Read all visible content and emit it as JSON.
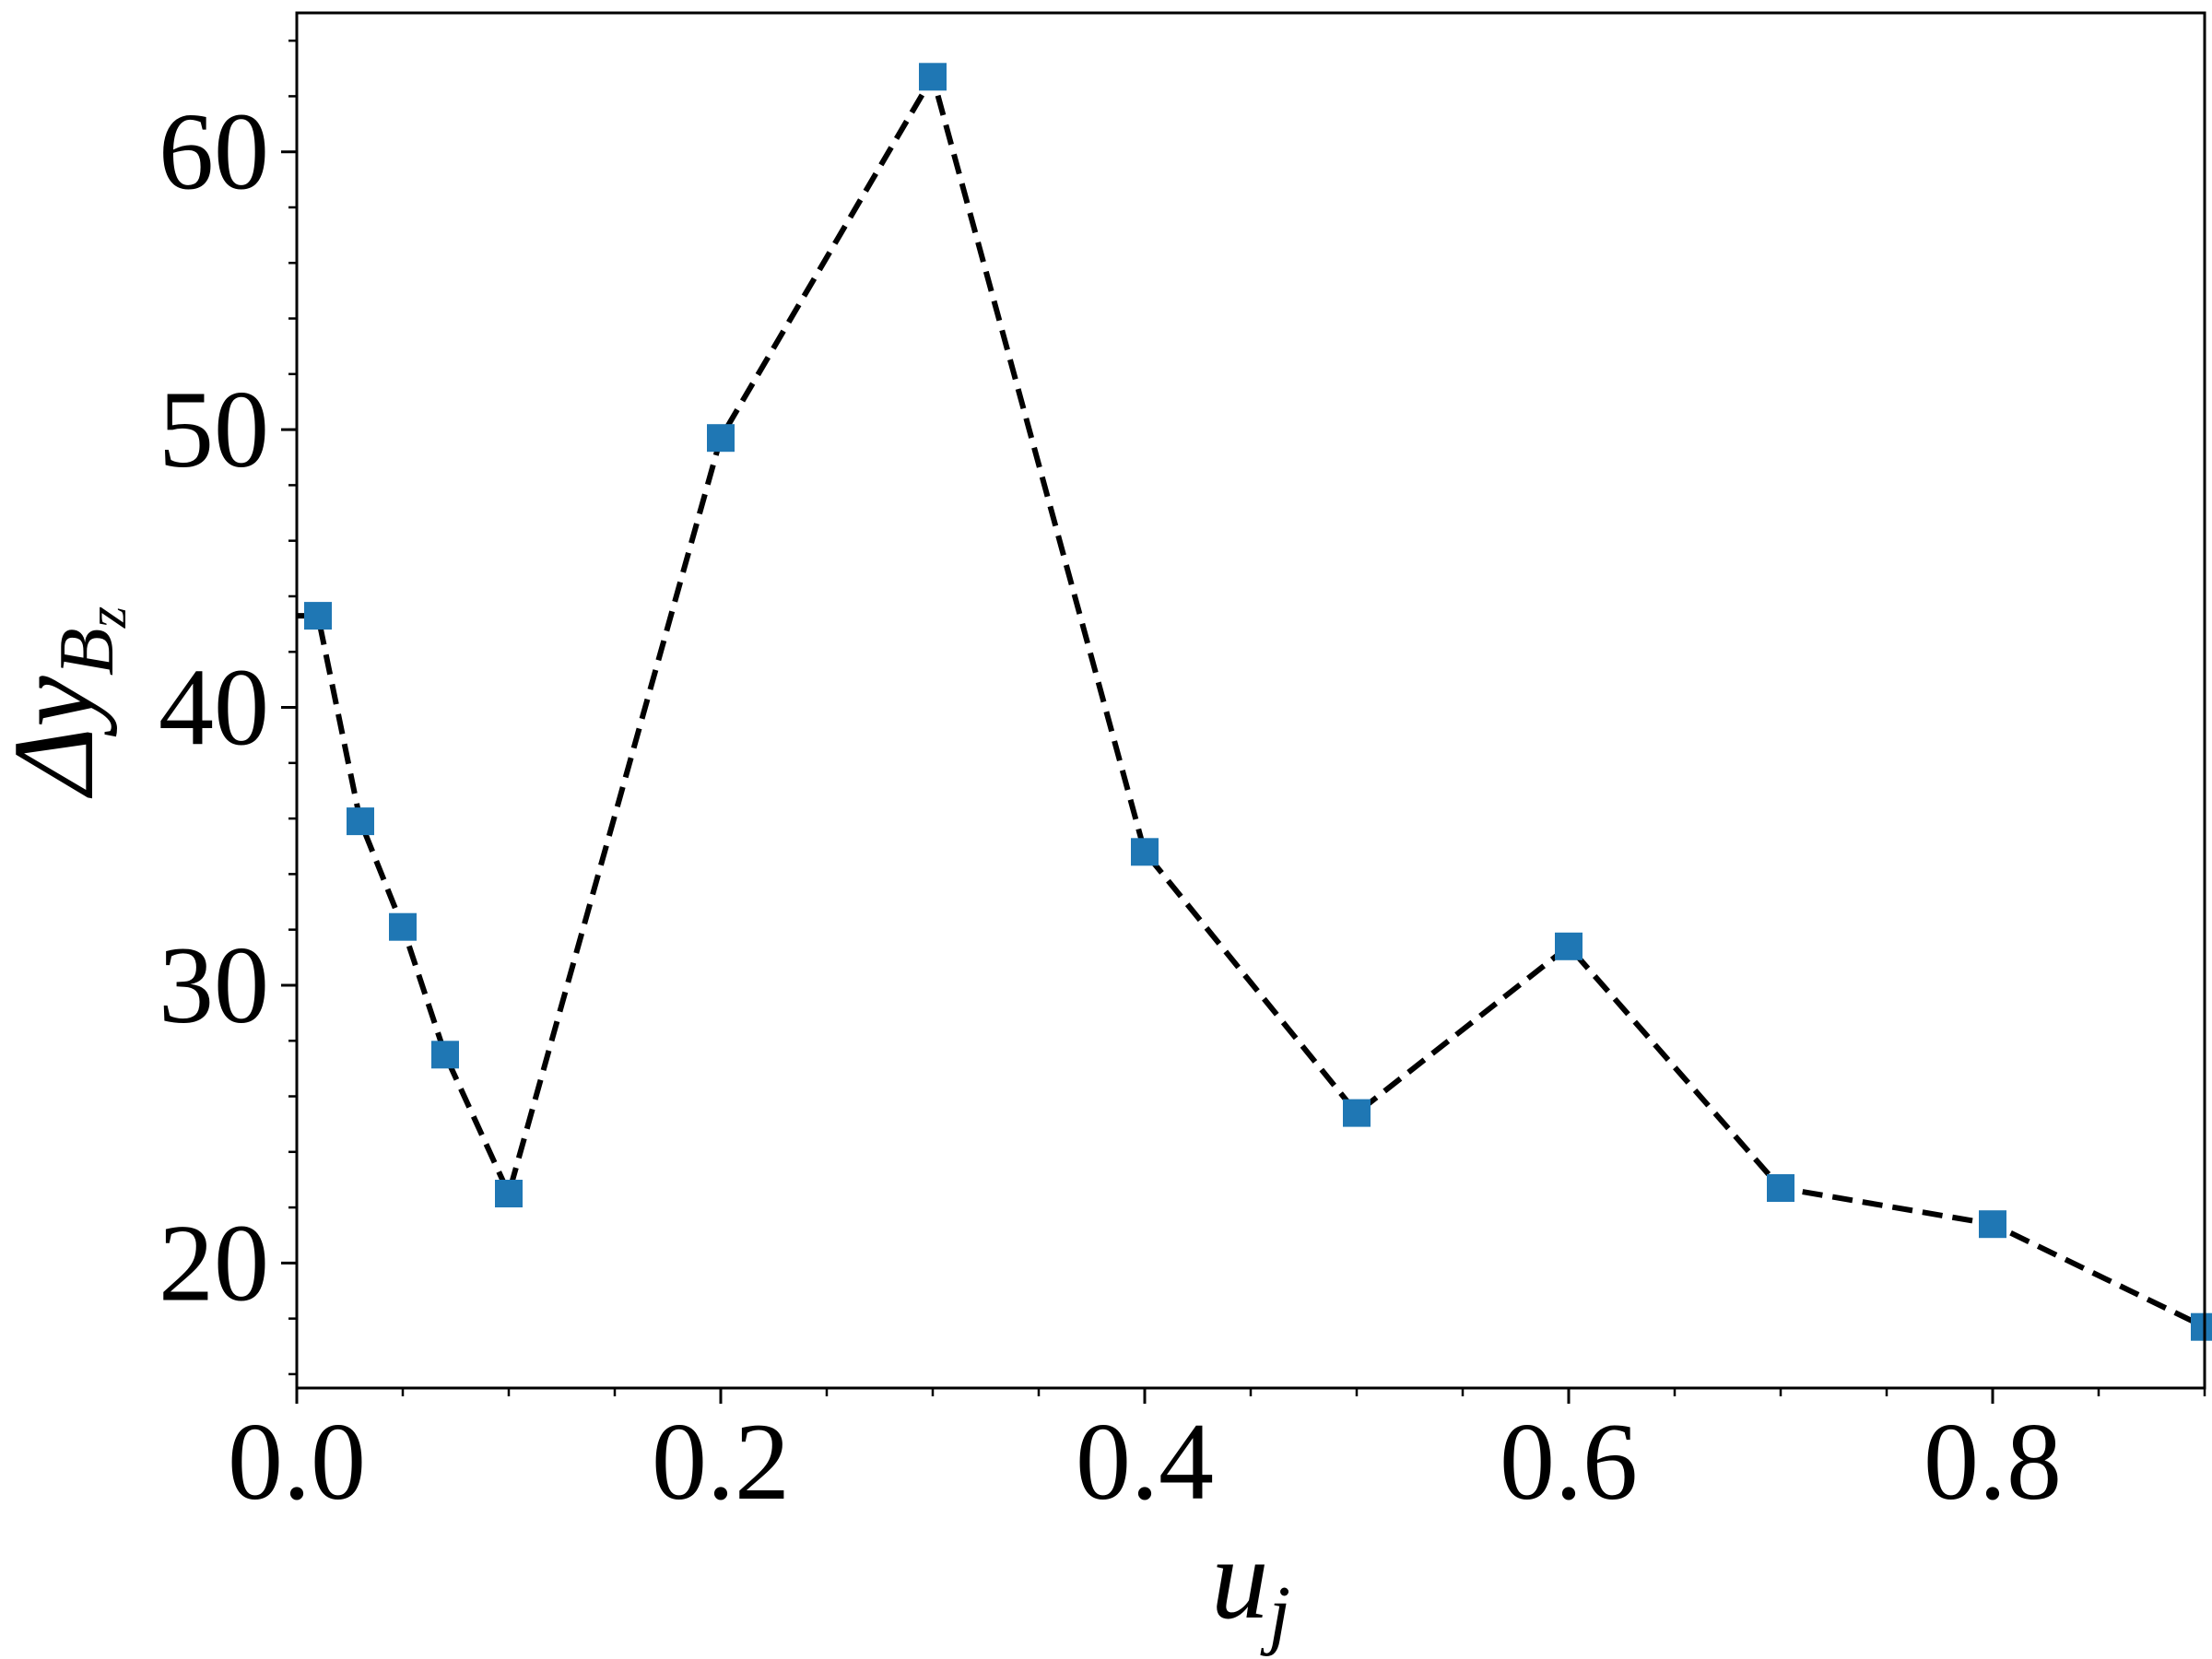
{
  "chart_data": {
    "type": "line",
    "xlabel": "u",
    "xlabel_sub": "j",
    "ylabel_prefix": "Δy",
    "ylabel_sub": "B",
    "ylabel_subsub": "z",
    "xlim": [
      0.0,
      0.9
    ],
    "ylim": [
      15.5,
      65
    ],
    "xticks": [
      0.0,
      0.2,
      0.4,
      0.6,
      0.8
    ],
    "xtick_labels": [
      "0.0",
      "0.2",
      "0.4",
      "0.6",
      "0.8"
    ],
    "yticks": [
      20,
      30,
      40,
      50,
      60
    ],
    "ytick_labels": [
      "20",
      "30",
      "40",
      "50",
      "60"
    ],
    "x_minor_step": 0.05,
    "y_minor_step": 2,
    "grid": false,
    "series": [
      {
        "x": [
          0.01,
          0.03,
          0.05,
          0.07,
          0.1,
          0.2,
          0.3,
          0.4,
          0.5,
          0.6,
          0.7,
          0.8,
          0.9
        ],
        "y": [
          43.3,
          35.9,
          32.1,
          27.5,
          22.5,
          49.7,
          62.7,
          34.8,
          25.4,
          31.4,
          22.7,
          21.4,
          17.7
        ],
        "marker": "square",
        "marker_color": "#1f77b4",
        "line_style": "dashed",
        "line_color": "#000000"
      }
    ]
  }
}
